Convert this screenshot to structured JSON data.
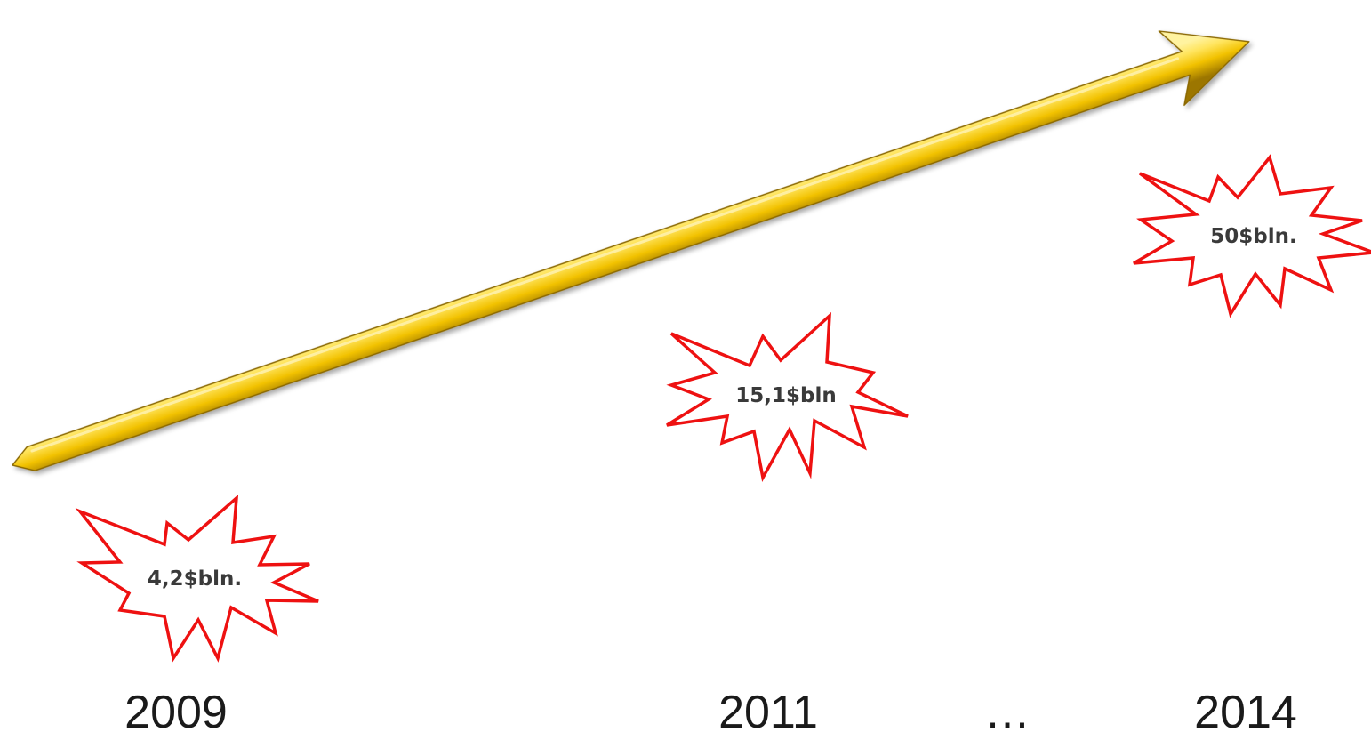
{
  "timeline": {
    "years": [
      "2009",
      "2011",
      "…",
      "2014"
    ],
    "bursts": [
      {
        "year": "2009",
        "label": "4,2$bln."
      },
      {
        "year": "2011",
        "label": "15,1$bln"
      },
      {
        "year": "2014",
        "label": "50$bln."
      }
    ]
  },
  "colors": {
    "arrow_light": "#ffe45c",
    "arrow_mid": "#f2c200",
    "arrow_dark": "#a07c00",
    "burst_stroke": "#ee1111",
    "burst_fill": "#ffffff",
    "label_text": "#3a3a3a",
    "year_text": "#1a1a1a"
  },
  "icons": {
    "arrow": "trend-arrow-icon",
    "burst": "explosion-burst-icon"
  }
}
